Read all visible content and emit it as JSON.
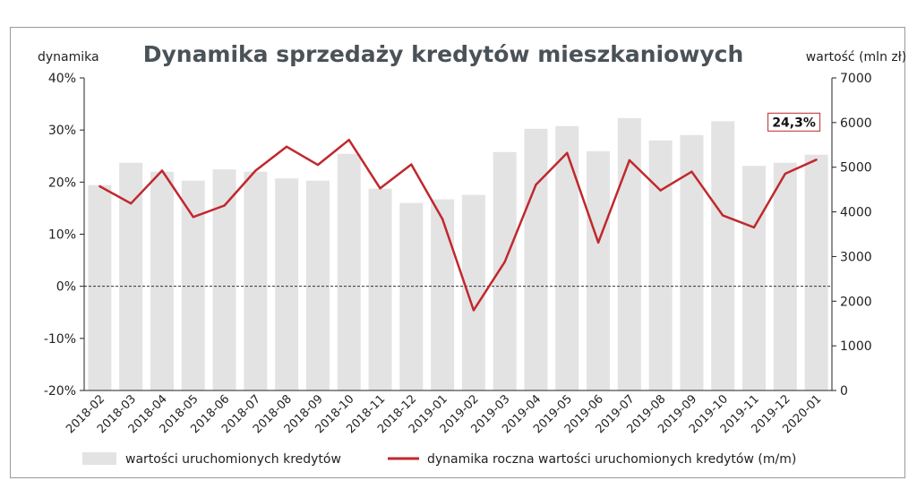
{
  "chart_data": {
    "type": "bar+line",
    "title": "Dynamika sprzedaży kredytów mieszkaniowych",
    "ylabel_left": "dynamika",
    "ylabel_right": "wartość (mln zł)",
    "categories": [
      "2018-02",
      "2018-03",
      "2018-04",
      "2018-05",
      "2018-06",
      "2018-07",
      "2018-08",
      "2018-09",
      "2018-10",
      "2018-11",
      "2018-12",
      "2019-01",
      "2019-02",
      "2019-03",
      "2019-04",
      "2019-05",
      "2019-06",
      "2019-07",
      "2019-08",
      "2019-09",
      "2019-10",
      "2019-11",
      "2019-12",
      "2020-01"
    ],
    "yticks_left": [
      "40%",
      "30%",
      "20%",
      "10%",
      "0%",
      "-10%",
      "-20%"
    ],
    "ylim_left": [
      -20,
      40
    ],
    "yticks_right": [
      "7000",
      "6000",
      "5000",
      "4000",
      "3000",
      "2000",
      "1000",
      "0"
    ],
    "ylim_right": [
      0,
      7000
    ],
    "series": [
      {
        "name": "wartości uruchomionych kredytów",
        "type": "bar",
        "axis": "right",
        "color": "#e3e3e3",
        "values": [
          4600,
          5100,
          4900,
          4700,
          4950,
          4900,
          4750,
          4700,
          5300,
          4520,
          4200,
          4280,
          4380,
          5340,
          5860,
          5920,
          5360,
          6100,
          5600,
          5720,
          6030,
          5030,
          5100,
          5280
        ]
      },
      {
        "name": "dynamika roczna wartości uruchomionych kredytów (m/m)",
        "type": "line",
        "axis": "left",
        "color": "#c0282d",
        "values": [
          19.2,
          15.9,
          22.2,
          13.3,
          15.5,
          22.2,
          26.8,
          23.3,
          28.1,
          18.8,
          23.4,
          12.9,
          -4.6,
          4.7,
          19.5,
          25.6,
          8.4,
          24.2,
          18.4,
          22.0,
          13.6,
          11.3,
          21.6,
          24.3
        ]
      }
    ],
    "annotation": "24,3%",
    "reference_line": 0,
    "grid": false,
    "legend_position": "bottom"
  }
}
